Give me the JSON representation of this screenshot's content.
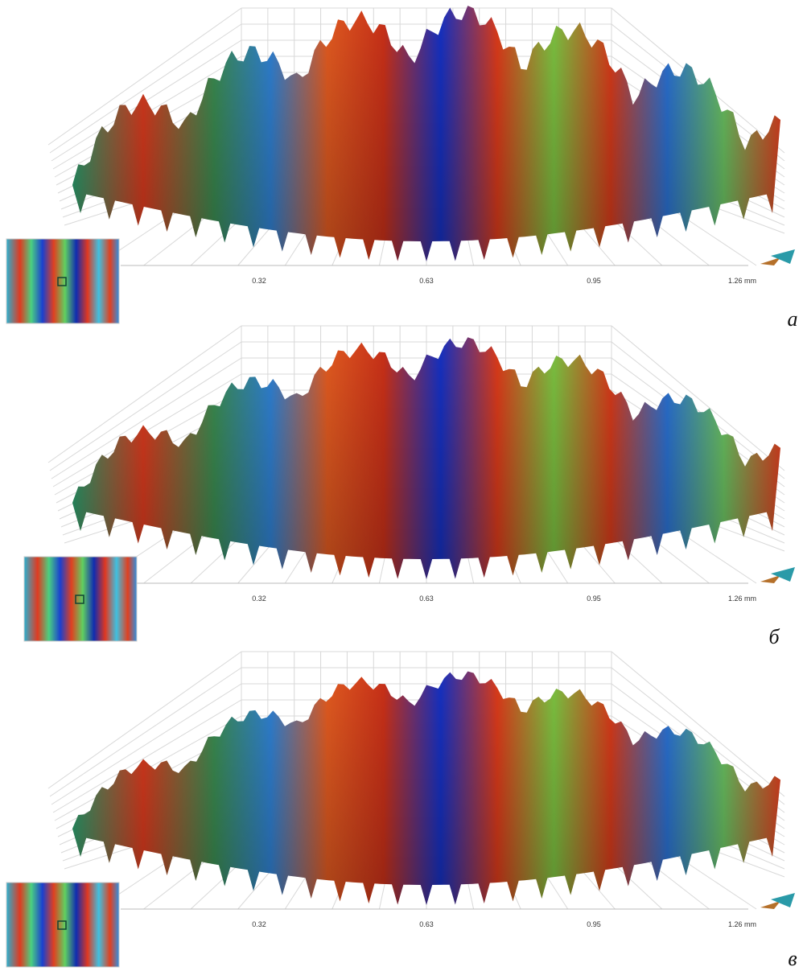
{
  "panels": [
    {
      "ticks": [
        "0.32",
        "0.63",
        "0.95",
        "1.26 mm"
      ],
      "label": "a"
    },
    {
      "ticks": [
        "0.32",
        "0.63",
        "0.95",
        "1.26 mm"
      ],
      "label": "б"
    },
    {
      "ticks": [
        "0.32",
        "0.63",
        "0.95",
        "1.26 mm"
      ],
      "label": "в"
    }
  ]
}
